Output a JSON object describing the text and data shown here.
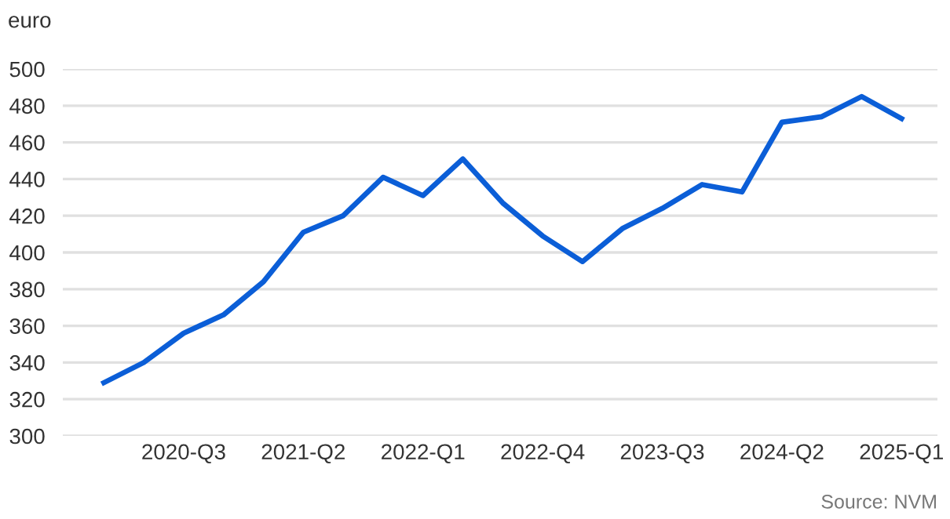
{
  "chart_data": {
    "type": "line",
    "ylabel": "euro",
    "categories": [
      null,
      null,
      "2020-Q3",
      null,
      null,
      "2021-Q2",
      null,
      null,
      "2022-Q1",
      null,
      null,
      "2022-Q4",
      null,
      null,
      "2023-Q3",
      null,
      null,
      "2024-Q2",
      null,
      null,
      "2025-Q1"
    ],
    "series": [
      {
        "color": "#0b5ed7",
        "values": [
          329,
          340,
          356,
          366,
          384,
          411,
          420,
          441,
          431,
          451,
          427,
          409,
          395,
          413,
          424,
          437,
          433,
          471,
          474,
          485,
          473
        ]
      }
    ],
    "ylim": [
      300,
      500
    ],
    "yticks": [
      300,
      320,
      340,
      360,
      380,
      400,
      420,
      440,
      460,
      480,
      500
    ],
    "grid": "y",
    "legend": false,
    "marker": "none",
    "line_style": "solid",
    "annotations": [
      "Source: NVM"
    ]
  }
}
